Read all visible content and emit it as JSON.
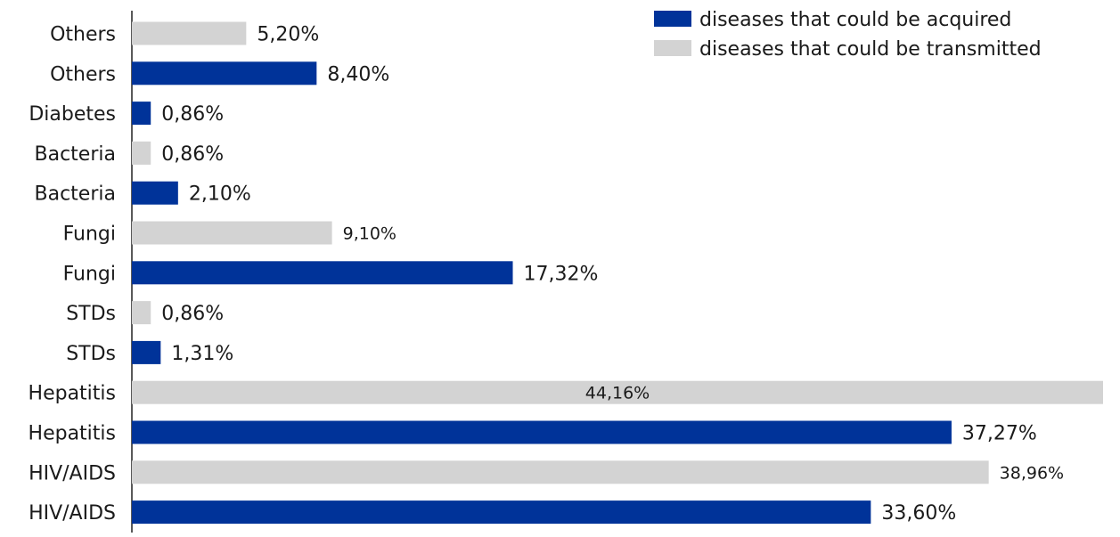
{
  "chart_data": {
    "type": "bar",
    "orientation": "horizontal",
    "title": "",
    "xlabel": "",
    "ylabel": "",
    "xlim": [
      0,
      44.16
    ],
    "grid": false,
    "legend_position": "top-right",
    "colors": {
      "acquired": "#003399",
      "transmitted": "#d3d3d3"
    },
    "legend": [
      {
        "label": "diseases that could be acquired",
        "series": "acquired"
      },
      {
        "label": "diseases that could be transmitted",
        "series": "transmitted"
      }
    ],
    "bars": [
      {
        "category": "Others",
        "series": "transmitted",
        "value": 5.2,
        "label": "5,20%"
      },
      {
        "category": "Others",
        "series": "acquired",
        "value": 8.4,
        "label": "8,40%"
      },
      {
        "category": "Diabetes",
        "series": "acquired",
        "value": 0.86,
        "label": "0,86%"
      },
      {
        "category": "Bacteria",
        "series": "transmitted",
        "value": 0.86,
        "label": "0,86%"
      },
      {
        "category": "Bacteria",
        "series": "acquired",
        "value": 2.1,
        "label": "2,10%"
      },
      {
        "category": "Fungi",
        "series": "transmitted",
        "value": 9.1,
        "label": "9,10%"
      },
      {
        "category": "Fungi",
        "series": "acquired",
        "value": 17.32,
        "label": "17,32%"
      },
      {
        "category": "STDs",
        "series": "transmitted",
        "value": 0.86,
        "label": "0,86%"
      },
      {
        "category": "STDs",
        "series": "acquired",
        "value": 1.31,
        "label": "1,31%"
      },
      {
        "category": "Hepatitis",
        "series": "transmitted",
        "value": 44.16,
        "label": "44,16%"
      },
      {
        "category": "Hepatitis",
        "series": "acquired",
        "value": 37.27,
        "label": "37,27%"
      },
      {
        "category": "HIV/AIDS",
        "series": "transmitted",
        "value": 38.96,
        "label": "38,96%"
      },
      {
        "category": "HIV/AIDS",
        "series": "acquired",
        "value": 33.6,
        "label": "33,60%"
      }
    ]
  }
}
